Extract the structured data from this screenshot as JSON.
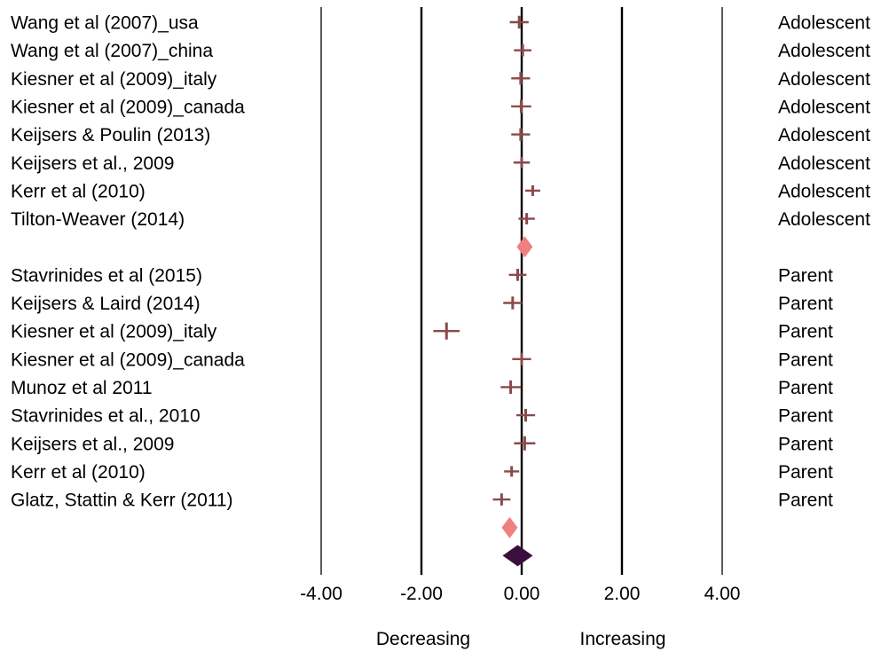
{
  "chart_data": {
    "type": "forest",
    "x_ticks": [
      {
        "value": -4,
        "label": "-4.00"
      },
      {
        "value": -2,
        "label": "-2.00"
      },
      {
        "value": 0,
        "label": "0.00"
      },
      {
        "value": 2,
        "label": "2.00"
      },
      {
        "value": 4,
        "label": "4.00"
      }
    ],
    "xlim": [
      -4,
      4
    ],
    "direction_labels": {
      "left": "Decreasing",
      "right": "Increasing"
    },
    "colors": {
      "study": "#8b4a4a",
      "subgroup_summary": "#f08080",
      "overall_summary": "#3a0f3d",
      "gridline": "#000000"
    },
    "rows": [
      {
        "kind": "study",
        "label": "Wang et al (2007)_usa",
        "group": "Adolescent",
        "estimate": -0.05,
        "size": 0.8
      },
      {
        "kind": "study",
        "label": "Wang et al (2007)_china",
        "group": "Adolescent",
        "estimate": 0.02,
        "size": 0.7
      },
      {
        "kind": "study",
        "label": "Kiesner et al (2009)_italy",
        "group": "Adolescent",
        "estimate": -0.02,
        "size": 0.8
      },
      {
        "kind": "study",
        "label": "Kiesner et al (2009)_canada",
        "group": "Adolescent",
        "estimate": -0.01,
        "size": 0.9
      },
      {
        "kind": "study",
        "label": "Keijsers & Poulin (2013)",
        "group": "Adolescent",
        "estimate": -0.02,
        "size": 0.8
      },
      {
        "kind": "study",
        "label": "Keijsers et al., 2009",
        "group": "Adolescent",
        "estimate": 0.0,
        "size": 0.6
      },
      {
        "kind": "study",
        "label": "Kerr et al (2010)",
        "group": "Adolescent",
        "estimate": 0.22,
        "size": 0.5
      },
      {
        "kind": "study",
        "label": "Tilton-Weaver (2014)",
        "group": "Adolescent",
        "estimate": 0.1,
        "size": 0.6
      },
      {
        "kind": "subgroup",
        "estimate": 0.06
      },
      {
        "kind": "study",
        "label": "Stavrinides et al (2015)",
        "group": "Parent",
        "estimate": -0.08,
        "size": 0.7
      },
      {
        "kind": "study",
        "label": "Keijsers & Laird (2014)",
        "group": "Parent",
        "estimate": -0.18,
        "size": 0.8
      },
      {
        "kind": "study",
        "label": "Kiesner et al (2009)_italy",
        "group": "Parent",
        "estimate": -1.5,
        "size": 1.4
      },
      {
        "kind": "study",
        "label": "Kiesner et al (2009)_canada",
        "group": "Parent",
        "estimate": 0.0,
        "size": 0.8
      },
      {
        "kind": "study",
        "label": "Munoz et al 2011",
        "group": "Parent",
        "estimate": -0.22,
        "size": 0.9
      },
      {
        "kind": "study",
        "label": "Stavrinides et al., 2010",
        "group": "Parent",
        "estimate": 0.08,
        "size": 0.8
      },
      {
        "kind": "study",
        "label": "Keijsers et al., 2009",
        "group": "Parent",
        "estimate": 0.06,
        "size": 1.0
      },
      {
        "kind": "study",
        "label": "Kerr et al (2010)",
        "group": "Parent",
        "estimate": -0.2,
        "size": 0.5
      },
      {
        "kind": "study",
        "label": "Glatz, Stattin & Kerr (2011)",
        "group": "Parent",
        "estimate": -0.4,
        "size": 0.7
      },
      {
        "kind": "subgroup",
        "estimate": -0.24
      },
      {
        "kind": "overall",
        "estimate": -0.08
      }
    ]
  }
}
